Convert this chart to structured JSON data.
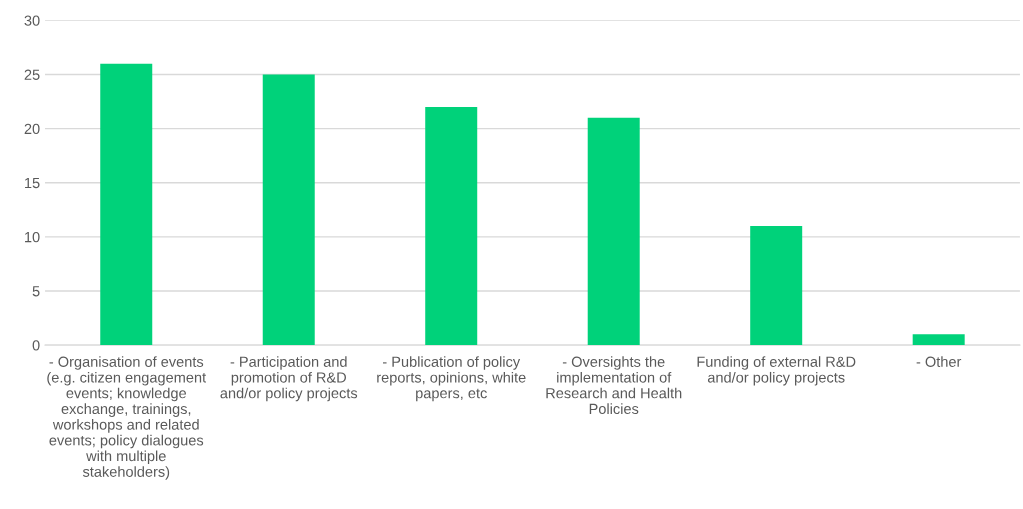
{
  "chart_data": {
    "type": "bar",
    "categories": [
      "- Organisation of events\n(e.g. citizen engagement\nevents; knowledge\nexchange, trainings,\nworkshops and related\nevents; policy dialogues\nwith multiple\nstakeholders)",
      "- Participation and\npromotion of R&D\nand/or policy projects",
      "- Publication of policy\nreports, opinions, white\npapers, etc",
      "- Oversights the\nimplementation of\nResearch and Health\nPolicies",
      "Funding of external R&D\nand/or policy projects",
      "- Other"
    ],
    "values": [
      26,
      25,
      22,
      21,
      11,
      1
    ],
    "color": "#00d27a",
    "ylim": [
      0,
      30
    ],
    "yticks": [
      0,
      5,
      10,
      15,
      20,
      25,
      30
    ],
    "grid": "y"
  }
}
